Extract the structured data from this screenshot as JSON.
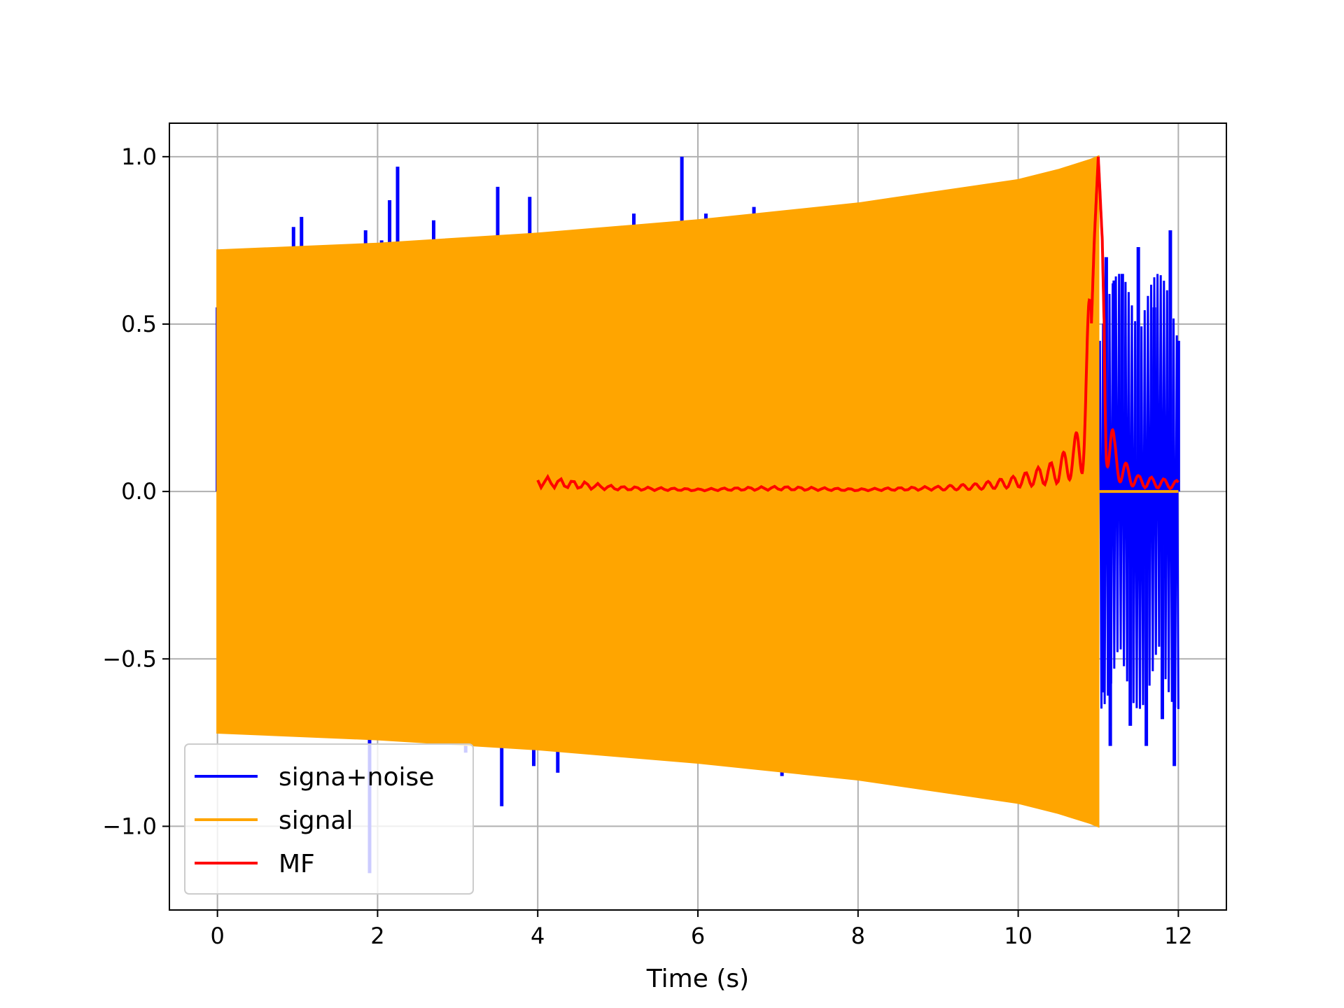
{
  "chart_data": {
    "type": "line",
    "title": "",
    "xlabel": "Time (s)",
    "ylabel": "",
    "xlim": [
      -0.6,
      12.6
    ],
    "ylim": [
      -1.25,
      1.1
    ],
    "xticks": [
      0,
      2,
      4,
      6,
      8,
      10,
      12
    ],
    "xtick_labels": [
      "0",
      "2",
      "4",
      "6",
      "8",
      "10",
      "12"
    ],
    "yticks": [
      -1.0,
      -0.5,
      0.0,
      0.5,
      1.0
    ],
    "ytick_labels": [
      "−1.0",
      "−0.5",
      "0.0",
      "0.5",
      "1.0"
    ],
    "grid": true,
    "legend_position": "lower-left",
    "series": [
      {
        "name": "signa+noise",
        "color": "#0000ff",
        "x": [
          0.0,
          0.05,
          0.15,
          0.3,
          0.5,
          0.7,
          0.95,
          1.05,
          1.2,
          1.5,
          1.85,
          1.9,
          2.05,
          2.15,
          2.25,
          2.35,
          2.7,
          2.95,
          3.1,
          3.5,
          3.55,
          3.8,
          3.9,
          3.95,
          4.2,
          4.25,
          5.2,
          5.8,
          6.1,
          6.7,
          7.05,
          11.05,
          11.1,
          11.15,
          11.2,
          11.3,
          11.4,
          11.5,
          11.6,
          11.7,
          11.8,
          11.9,
          11.95,
          12.0
        ],
        "y": [
          0.55,
          -0.46,
          0.42,
          -0.6,
          0.5,
          -0.5,
          0.79,
          0.82,
          -0.7,
          -0.65,
          0.78,
          -1.14,
          0.75,
          0.87,
          0.97,
          -0.6,
          0.81,
          -0.7,
          -0.78,
          0.91,
          -0.94,
          0.68,
          0.88,
          -0.82,
          0.7,
          -0.84,
          0.83,
          1.0,
          0.83,
          0.85,
          -0.85,
          -0.6,
          0.7,
          -0.76,
          0.63,
          0.65,
          -0.7,
          0.73,
          -0.76,
          0.55,
          -0.68,
          0.78,
          -0.82,
          0.45
        ]
      },
      {
        "name": "signal",
        "color": "#ffa500",
        "x": [
          0.0,
          2.0,
          4.0,
          6.0,
          8.0,
          10.0,
          10.5,
          10.9,
          11.0
        ],
        "y": [
          0.72,
          0.74,
          0.77,
          0.81,
          0.86,
          0.93,
          0.96,
          0.99,
          1.0
        ]
      },
      {
        "name": "MF",
        "color": "#ff0000",
        "x": [
          4.0,
          5.0,
          6.0,
          7.0,
          8.0,
          9.0,
          9.5,
          10.0,
          10.5,
          10.7,
          10.8,
          10.9,
          10.95,
          11.0,
          11.05,
          11.1,
          11.2,
          11.3,
          11.5,
          12.0
        ],
        "y": [
          0.03,
          0.01,
          0.005,
          0.01,
          0.005,
          0.01,
          0.015,
          0.03,
          0.06,
          0.1,
          0.14,
          0.4,
          0.75,
          1.0,
          0.75,
          0.2,
          0.1,
          0.06,
          0.03,
          0.02
        ]
      }
    ]
  }
}
